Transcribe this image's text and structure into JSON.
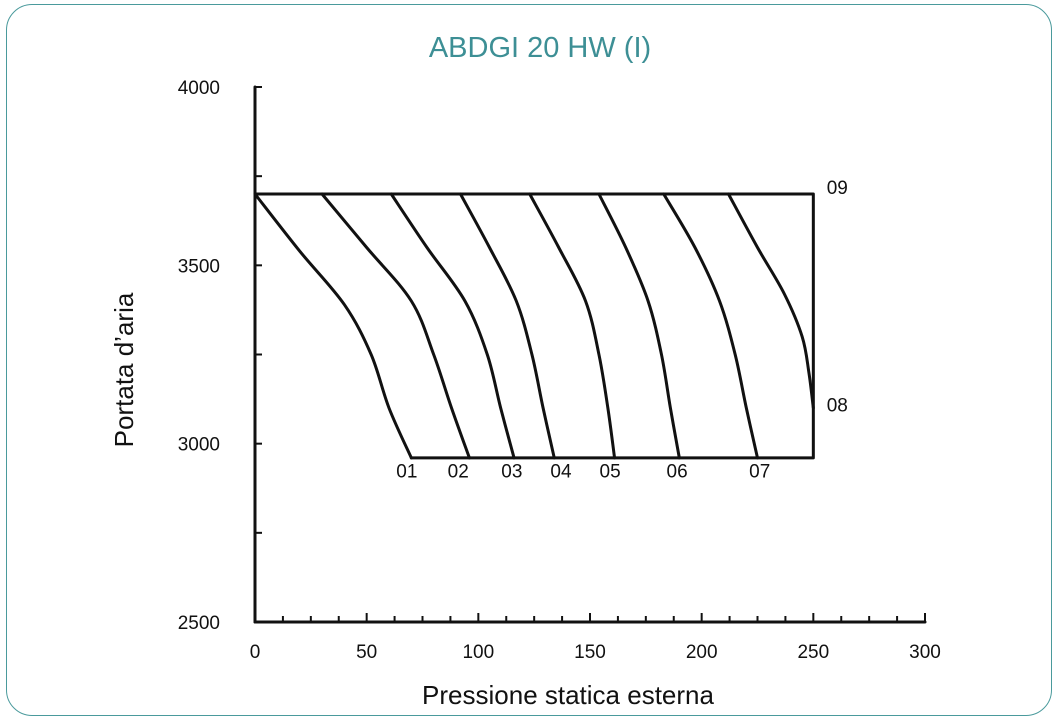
{
  "chart_data": {
    "type": "line",
    "title": "ABDGI 20 HW (I)",
    "xlabel": "Pressione statica esterna",
    "ylabel": "Portata d’aria",
    "xlim": [
      0,
      300
    ],
    "ylim": [
      2500,
      4000
    ],
    "x_ticks": [
      0,
      50,
      100,
      150,
      200,
      250,
      300
    ],
    "x_tick_labels": [
      "0",
      "50",
      "100",
      "150",
      "200",
      "250",
      "300"
    ],
    "y_ticks": [
      2500,
      3000,
      3500,
      4000
    ],
    "y_tick_labels": [
      "2500",
      "3000",
      "3500",
      "4000"
    ],
    "grid": false,
    "envelope": {
      "x": [
        0,
        250,
        250,
        70
      ],
      "y": [
        3700,
        3700,
        2960,
        2960
      ]
    },
    "series": [
      {
        "name": "01",
        "x": [
          0,
          20,
          40,
          52,
          60,
          70
        ],
        "y": [
          3700,
          3540,
          3390,
          3250,
          3100,
          2960
        ]
      },
      {
        "name": "02",
        "x": [
          30,
          50,
          70,
          80,
          88,
          96
        ],
        "y": [
          3700,
          3550,
          3400,
          3250,
          3100,
          2960
        ]
      },
      {
        "name": "03",
        "x": [
          61,
          77,
          94,
          104,
          110,
          116
        ],
        "y": [
          3700,
          3550,
          3400,
          3250,
          3100,
          2960
        ]
      },
      {
        "name": "04",
        "x": [
          92,
          105,
          117,
          124,
          129,
          134
        ],
        "y": [
          3700,
          3550,
          3400,
          3250,
          3100,
          2960
        ]
      },
      {
        "name": "05",
        "x": [
          123,
          136,
          148,
          154,
          158,
          161
        ],
        "y": [
          3700,
          3550,
          3400,
          3250,
          3100,
          2960
        ]
      },
      {
        "name": "06",
        "x": [
          154,
          166,
          176,
          182,
          186,
          190
        ],
        "y": [
          3700,
          3550,
          3400,
          3250,
          3100,
          2960
        ]
      },
      {
        "name": "07",
        "x": [
          183,
          197,
          208,
          215,
          220,
          225
        ],
        "y": [
          3700,
          3550,
          3400,
          3250,
          3100,
          2960
        ]
      },
      {
        "name": "08",
        "x": [
          212,
          225,
          237,
          245,
          248,
          250
        ],
        "y": [
          3700,
          3550,
          3420,
          3300,
          3200,
          3100
        ]
      }
    ],
    "curve_labels": [
      {
        "text": "01",
        "x": 68,
        "y": 2905
      },
      {
        "text": "02",
        "x": 91,
        "y": 2905
      },
      {
        "text": "03",
        "x": 115,
        "y": 2905
      },
      {
        "text": "04",
        "x": 137,
        "y": 2905
      },
      {
        "text": "05",
        "x": 159,
        "y": 2905
      },
      {
        "text": "06",
        "x": 189,
        "y": 2905
      },
      {
        "text": "07",
        "x": 226,
        "y": 2905
      },
      {
        "text": "08",
        "x": 256,
        "y": 3090
      },
      {
        "text": "09",
        "x": 256,
        "y": 3700
      }
    ]
  }
}
